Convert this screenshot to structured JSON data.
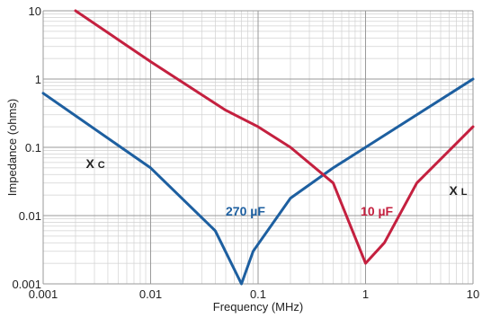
{
  "chart_data": {
    "type": "line",
    "xlabel": "Frequency (MHz)",
    "ylabel": "Impedance (ohms)",
    "xscale": "log",
    "yscale": "log",
    "xlim": [
      0.001,
      10
    ],
    "ylim": [
      0.001,
      10
    ],
    "grid": true,
    "x_ticks": [
      "0.001",
      "0.01",
      "0.1",
      "1",
      "10"
    ],
    "y_ticks": [
      "0.001",
      "0.01",
      "0.1",
      "1",
      "10"
    ],
    "series": [
      {
        "name": "270 µF",
        "color": "#1d5fa0",
        "points": [
          [
            0.001,
            0.62
          ],
          [
            0.01,
            0.05
          ],
          [
            0.04,
            0.006
          ],
          [
            0.07,
            0.001
          ],
          [
            0.09,
            0.003
          ],
          [
            0.2,
            0.018
          ],
          [
            0.5,
            0.05
          ],
          [
            1,
            0.1
          ],
          [
            10,
            1.0
          ]
        ]
      },
      {
        "name": "10 µF",
        "color": "#c4203f",
        "points": [
          [
            0.002,
            10
          ],
          [
            0.01,
            1.8
          ],
          [
            0.05,
            0.35
          ],
          [
            0.1,
            0.2
          ],
          [
            0.2,
            0.1
          ],
          [
            0.5,
            0.03
          ],
          [
            1,
            0.002
          ],
          [
            1.5,
            0.004
          ],
          [
            3,
            0.03
          ],
          [
            10,
            0.2
          ]
        ]
      }
    ],
    "annotations": [
      {
        "text": "X",
        "sub": "C",
        "x": 0.0025,
        "y": 0.05,
        "color": "#222222"
      },
      {
        "text": "X",
        "sub": "L",
        "x": 6,
        "y": 0.02,
        "color": "#222222"
      },
      {
        "text": "270 µF",
        "x": 0.05,
        "y": 0.01,
        "color": "#1d5fa0"
      },
      {
        "text": "10 µF",
        "x": 0.9,
        "y": 0.01,
        "color": "#c4203f"
      }
    ]
  }
}
